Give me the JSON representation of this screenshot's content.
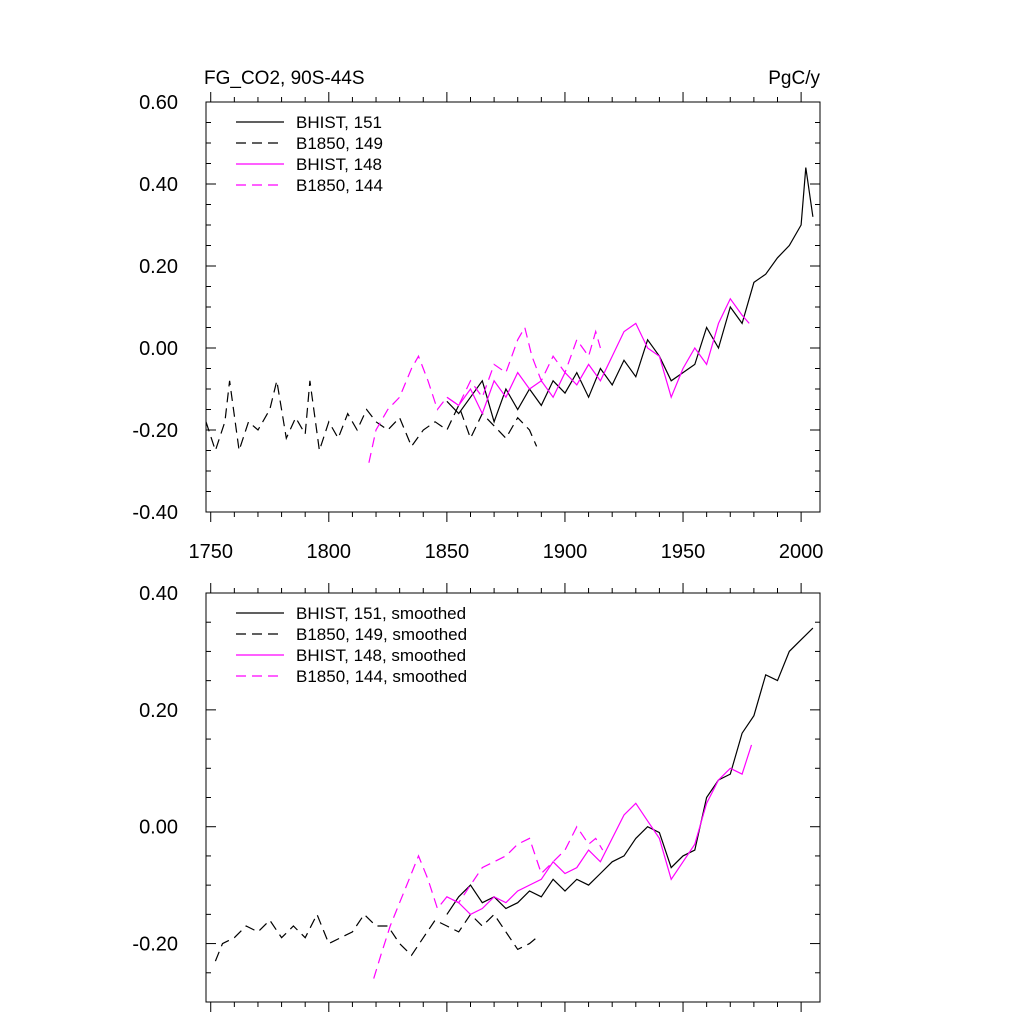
{
  "chart_data": [
    {
      "type": "line",
      "title_left": "FG_CO2, 90S-44S",
      "title_right": "PgC/y",
      "xlabel": "",
      "ylabel": "",
      "xlim": [
        1748,
        2008
      ],
      "ylim": [
        -0.4,
        0.6
      ],
      "x_ticks": [
        1750,
        1800,
        1850,
        1900,
        1950,
        2000
      ],
      "x_tick_labels": [
        "1750",
        "1800",
        "1850",
        "1900",
        "1950",
        "2000"
      ],
      "y_ticks": [
        -0.4,
        -0.2,
        0.0,
        0.2,
        0.4,
        0.6
      ],
      "y_tick_labels": [
        "-0.40",
        "-0.20",
        "0.00",
        "0.20",
        "0.40",
        "0.60"
      ],
      "legend_position": "top-left",
      "series": [
        {
          "name": "BHIST, 151",
          "color": "#000000",
          "dash": "solid",
          "x": [
            1850,
            1855,
            1860,
            1865,
            1870,
            1875,
            1880,
            1885,
            1890,
            1895,
            1900,
            1905,
            1910,
            1915,
            1920,
            1925,
            1930,
            1935,
            1940,
            1945,
            1950,
            1955,
            1960,
            1965,
            1970,
            1975,
            1980,
            1985,
            1990,
            1995,
            2000,
            2002,
            2005
          ],
          "values": [
            -0.13,
            -0.16,
            -0.12,
            -0.08,
            -0.18,
            -0.1,
            -0.15,
            -0.1,
            -0.14,
            -0.08,
            -0.11,
            -0.06,
            -0.12,
            -0.05,
            -0.09,
            -0.03,
            -0.07,
            0.02,
            -0.02,
            -0.08,
            -0.06,
            -0.04,
            0.05,
            0.0,
            0.1,
            0.06,
            0.16,
            0.18,
            0.22,
            0.25,
            0.3,
            0.44,
            0.32
          ]
        },
        {
          "name": "B1850, 149",
          "color": "#000000",
          "dash": "dashed",
          "x": [
            1748,
            1752,
            1756,
            1758,
            1762,
            1766,
            1770,
            1775,
            1778,
            1782,
            1786,
            1790,
            1792,
            1796,
            1800,
            1804,
            1808,
            1812,
            1816,
            1820,
            1825,
            1830,
            1835,
            1840,
            1845,
            1850,
            1855,
            1860,
            1865,
            1870,
            1875,
            1880,
            1885,
            1888
          ],
          "values": [
            -0.18,
            -0.25,
            -0.18,
            -0.08,
            -0.25,
            -0.18,
            -0.2,
            -0.15,
            -0.08,
            -0.22,
            -0.17,
            -0.21,
            -0.08,
            -0.25,
            -0.18,
            -0.22,
            -0.16,
            -0.2,
            -0.15,
            -0.18,
            -0.2,
            -0.17,
            -0.24,
            -0.2,
            -0.18,
            -0.2,
            -0.14,
            -0.22,
            -0.16,
            -0.19,
            -0.22,
            -0.17,
            -0.2,
            -0.24
          ]
        },
        {
          "name": "BHIST, 148",
          "color": "#ff00ff",
          "dash": "solid",
          "x": [
            1850,
            1855,
            1860,
            1865,
            1870,
            1875,
            1880,
            1885,
            1890,
            1895,
            1900,
            1905,
            1910,
            1915,
            1920,
            1925,
            1930,
            1935,
            1940,
            1945,
            1950,
            1955,
            1960,
            1965,
            1970,
            1975,
            1978
          ],
          "values": [
            -0.12,
            -0.14,
            -0.1,
            -0.16,
            -0.08,
            -0.12,
            -0.06,
            -0.1,
            -0.08,
            -0.12,
            -0.06,
            -0.09,
            -0.04,
            -0.08,
            -0.02,
            0.04,
            0.06,
            0.0,
            -0.02,
            -0.12,
            -0.05,
            0.0,
            -0.04,
            0.06,
            0.12,
            0.08,
            0.06
          ]
        },
        {
          "name": "B1850, 144",
          "color": "#ff00ff",
          "dash": "dashed",
          "x": [
            1817,
            1820,
            1825,
            1830,
            1835,
            1838,
            1842,
            1846,
            1850,
            1855,
            1860,
            1865,
            1870,
            1875,
            1880,
            1883,
            1886,
            1890,
            1895,
            1900,
            1905,
            1910,
            1913,
            1915
          ],
          "values": [
            -0.28,
            -0.2,
            -0.15,
            -0.12,
            -0.05,
            -0.02,
            -0.08,
            -0.15,
            -0.12,
            -0.14,
            -0.08,
            -0.12,
            -0.04,
            -0.06,
            0.02,
            0.05,
            -0.02,
            -0.08,
            -0.02,
            -0.06,
            0.02,
            -0.02,
            0.04,
            0.0
          ]
        }
      ]
    },
    {
      "type": "line",
      "xlim": [
        1748,
        2008
      ],
      "ylim": [
        -0.3,
        0.4
      ],
      "x_ticks": [
        1750,
        1800,
        1850,
        1900,
        1950,
        2000
      ],
      "y_ticks": [
        -0.2,
        0.0,
        0.2,
        0.4
      ],
      "y_tick_labels": [
        "-0.20",
        "0.00",
        "0.20",
        "0.40"
      ],
      "legend_position": "top-left",
      "series": [
        {
          "name": "BHIST, 151, smoothed",
          "color": "#000000",
          "dash": "solid",
          "x": [
            1850,
            1855,
            1860,
            1865,
            1870,
            1875,
            1880,
            1885,
            1890,
            1895,
            1900,
            1905,
            1910,
            1915,
            1920,
            1925,
            1930,
            1935,
            1940,
            1945,
            1950,
            1955,
            1960,
            1965,
            1970,
            1975,
            1980,
            1985,
            1990,
            1995,
            2000,
            2005
          ],
          "values": [
            -0.15,
            -0.12,
            -0.1,
            -0.13,
            -0.12,
            -0.14,
            -0.13,
            -0.11,
            -0.12,
            -0.09,
            -0.11,
            -0.09,
            -0.1,
            -0.08,
            -0.06,
            -0.05,
            -0.02,
            0.0,
            -0.01,
            -0.07,
            -0.05,
            -0.04,
            0.05,
            0.08,
            0.09,
            0.16,
            0.19,
            0.26,
            0.25,
            0.3,
            0.32,
            0.34
          ]
        },
        {
          "name": "B1850, 149, smoothed",
          "color": "#000000",
          "dash": "dashed",
          "x": [
            1752,
            1755,
            1760,
            1765,
            1770,
            1775,
            1780,
            1785,
            1790,
            1795,
            1800,
            1805,
            1810,
            1815,
            1820,
            1825,
            1830,
            1835,
            1840,
            1845,
            1850,
            1855,
            1860,
            1865,
            1870,
            1875,
            1880,
            1885,
            1888
          ],
          "values": [
            -0.23,
            -0.2,
            -0.19,
            -0.17,
            -0.18,
            -0.16,
            -0.19,
            -0.17,
            -0.19,
            -0.15,
            -0.2,
            -0.19,
            -0.18,
            -0.15,
            -0.17,
            -0.17,
            -0.2,
            -0.22,
            -0.19,
            -0.16,
            -0.17,
            -0.18,
            -0.15,
            -0.17,
            -0.15,
            -0.18,
            -0.21,
            -0.2,
            -0.19
          ]
        },
        {
          "name": "BHIST, 148, smoothed",
          "color": "#ff00ff",
          "dash": "solid",
          "x": [
            1850,
            1855,
            1860,
            1865,
            1870,
            1875,
            1880,
            1885,
            1890,
            1895,
            1900,
            1905,
            1910,
            1915,
            1920,
            1925,
            1930,
            1935,
            1940,
            1945,
            1950,
            1955,
            1960,
            1965,
            1970,
            1975,
            1979
          ],
          "values": [
            -0.12,
            -0.13,
            -0.15,
            -0.14,
            -0.12,
            -0.13,
            -0.11,
            -0.1,
            -0.09,
            -0.06,
            -0.08,
            -0.07,
            -0.04,
            -0.06,
            -0.02,
            0.02,
            0.04,
            0.01,
            -0.02,
            -0.09,
            -0.06,
            -0.03,
            0.04,
            0.08,
            0.1,
            0.09,
            0.14
          ]
        },
        {
          "name": "B1850, 144, smoothed",
          "color": "#ff00ff",
          "dash": "dashed",
          "x": [
            1819,
            1822,
            1826,
            1830,
            1834,
            1838,
            1842,
            1846,
            1850,
            1855,
            1860,
            1865,
            1870,
            1875,
            1880,
            1885,
            1890,
            1895,
            1900,
            1905,
            1910,
            1913,
            1916
          ],
          "values": [
            -0.26,
            -0.22,
            -0.17,
            -0.13,
            -0.09,
            -0.05,
            -0.09,
            -0.14,
            -0.12,
            -0.13,
            -0.1,
            -0.07,
            -0.06,
            -0.05,
            -0.03,
            -0.02,
            -0.08,
            -0.06,
            -0.04,
            0.0,
            -0.03,
            -0.02,
            -0.04
          ]
        }
      ]
    }
  ]
}
